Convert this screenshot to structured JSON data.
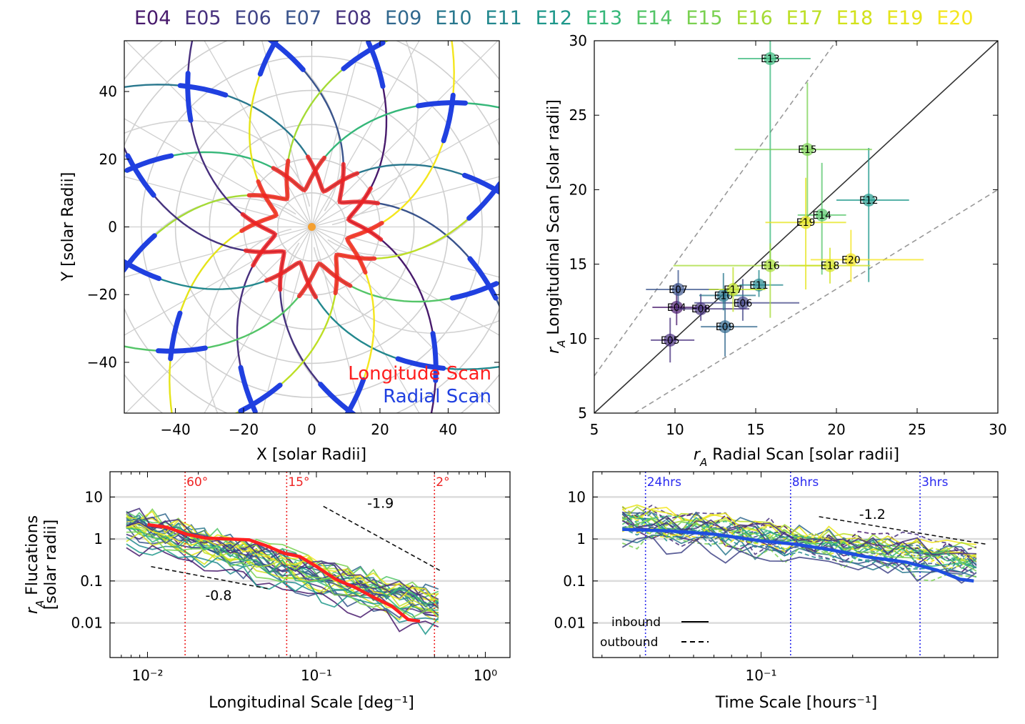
{
  "encounter_labels": [
    {
      "name": "E04",
      "color": "#481a6c"
    },
    {
      "name": "E05",
      "color": "#472f7d"
    },
    {
      "name": "E06",
      "color": "#414487"
    },
    {
      "name": "E07",
      "color": "#3a548c"
    },
    {
      "name": "E08",
      "color": "#46337e"
    },
    {
      "name": "E09",
      "color": "#31688e"
    },
    {
      "name": "E10",
      "color": "#2a788e"
    },
    {
      "name": "E11",
      "color": "#23888e"
    },
    {
      "name": "E12",
      "color": "#1f988b"
    },
    {
      "name": "E13",
      "color": "#35b779"
    },
    {
      "name": "E14",
      "color": "#54c568"
    },
    {
      "name": "E15",
      "color": "#7ad151"
    },
    {
      "name": "E16",
      "color": "#a5db36"
    },
    {
      "name": "E17",
      "color": "#bddf26"
    },
    {
      "name": "E18",
      "color": "#d2e21b"
    },
    {
      "name": "E19",
      "color": "#e5e419"
    },
    {
      "name": "E20",
      "color": "#f4e61e"
    }
  ],
  "chart_data": [
    {
      "id": "orbit-map",
      "type": "scatter",
      "xlabel": "X [solar Radii]",
      "ylabel": "Y [solar Radii]",
      "xlim": [
        -55,
        55
      ],
      "ylim": [
        -55,
        55
      ],
      "xticks": [
        -40,
        -20,
        0,
        20,
        40
      ],
      "yticks": [
        -40,
        -20,
        0,
        20,
        40
      ],
      "xtick_labels": [
        "−40",
        "−20",
        "0",
        "20",
        "40"
      ],
      "ytick_labels": [
        "−40",
        "−20",
        "0",
        "20",
        "40"
      ],
      "legend": [
        {
          "label": "Longitude Scan",
          "color": "#ff2020"
        },
        {
          "label": "Radial Scan",
          "color": "#2040e0"
        }
      ],
      "sun_color": "#f5a030"
    },
    {
      "id": "ra-comparison",
      "type": "scatter",
      "xlabel": "r_A Radial Scan [solar radii]",
      "ylabel": "r_A Longitudinal Scan [solar radii]",
      "xlim": [
        5,
        30
      ],
      "ylim": [
        5,
        30
      ],
      "xticks": [
        5,
        10,
        15,
        20,
        25,
        30
      ],
      "yticks": [
        5,
        10,
        15,
        20,
        25,
        30
      ],
      "points": [
        {
          "label": "E04",
          "x": 10.1,
          "y": 12.1,
          "xerr": [
            1.5,
            2.0
          ],
          "yerr": [
            1.2,
            1.6
          ],
          "color": "#481a6c"
        },
        {
          "label": "E05",
          "x": 9.7,
          "y": 9.9,
          "xerr": [
            1.2,
            1.5
          ],
          "yerr": [
            1.5,
            1.5
          ],
          "color": "#472f7d"
        },
        {
          "label": "E06",
          "x": 14.2,
          "y": 12.4,
          "xerr": [
            3.0,
            3.5
          ],
          "yerr": [
            1.2,
            1.6
          ],
          "color": "#414487"
        },
        {
          "label": "E07",
          "x": 10.2,
          "y": 13.3,
          "xerr": [
            2.0,
            2.5
          ],
          "yerr": [
            1.0,
            1.3
          ],
          "color": "#3a548c"
        },
        {
          "label": "E08",
          "x": 11.6,
          "y": 12.0,
          "xerr": [
            1.5,
            3.0
          ],
          "yerr": [
            0.8,
            1.0
          ],
          "color": "#46337e"
        },
        {
          "label": "E09",
          "x": 13.1,
          "y": 10.8,
          "xerr": [
            1.5,
            2.0
          ],
          "yerr": [
            2.0,
            2.5
          ],
          "color": "#31688e"
        },
        {
          "label": "E10",
          "x": 13.0,
          "y": 12.9,
          "xerr": [
            1.5,
            2.0
          ],
          "yerr": [
            1.0,
            1.5
          ],
          "color": "#2a788e"
        },
        {
          "label": "E11",
          "x": 15.2,
          "y": 13.6,
          "xerr": [
            1.2,
            1.5
          ],
          "yerr": [
            0.8,
            1.0
          ],
          "color": "#23888e"
        },
        {
          "label": "E12",
          "x": 22.0,
          "y": 19.3,
          "xerr": [
            2.0,
            2.5
          ],
          "yerr": [
            5.5,
            3.5
          ],
          "color": "#1f988b"
        },
        {
          "label": "E13",
          "x": 15.9,
          "y": 28.8,
          "xerr": [
            2.0,
            2.5
          ],
          "yerr": [
            14.0,
            1.5
          ],
          "color": "#35b779"
        },
        {
          "label": "E14",
          "x": 19.1,
          "y": 18.3,
          "xerr": [
            1.5,
            1.5
          ],
          "yerr": [
            4.0,
            3.5
          ],
          "color": "#54c568"
        },
        {
          "label": "E15",
          "x": 18.2,
          "y": 22.7,
          "xerr": [
            4.5,
            4.0
          ],
          "yerr": [
            5.0,
            4.5
          ],
          "color": "#7ad151"
        },
        {
          "label": "E16",
          "x": 15.9,
          "y": 14.9,
          "xerr": [
            6.0,
            3.5
          ],
          "yerr": [
            3.5,
            1.5
          ],
          "color": "#a5db36"
        },
        {
          "label": "E17",
          "x": 13.6,
          "y": 13.3,
          "xerr": [
            1.5,
            2.0
          ],
          "yerr": [
            1.5,
            1.5
          ],
          "color": "#bddf26"
        },
        {
          "label": "E18",
          "x": 19.6,
          "y": 14.9,
          "xerr": [
            2.5,
            2.5
          ],
          "yerr": [
            1.2,
            1.2
          ],
          "color": "#d2e21b"
        },
        {
          "label": "E19",
          "x": 18.1,
          "y": 17.8,
          "xerr": [
            2.5,
            2.5
          ],
          "yerr": [
            4.5,
            3.0
          ],
          "color": "#e5e419"
        },
        {
          "label": "E20",
          "x": 20.9,
          "y": 15.3,
          "xerr": [
            2.5,
            4.5
          ],
          "yerr": [
            1.5,
            2.0
          ],
          "color": "#f4e61e"
        }
      ],
      "reference_lines": [
        "y = x",
        "y = 1.5x",
        "y = x / 1.5"
      ]
    },
    {
      "id": "longitudinal-spectrum",
      "type": "line",
      "xscale": "log",
      "yscale": "log",
      "xlabel": "Longitudinal Scale [deg⁻¹]",
      "ylabel_line1": "r_A Flucations",
      "ylabel_line2": "[solar radii]",
      "xlim": [
        0.006,
        1.4
      ],
      "ylim": [
        0.0015,
        40
      ],
      "xtick_values": [
        0.01,
        0.1,
        1
      ],
      "xtick_labels": [
        "10⁻²",
        "10⁻¹",
        "10⁰"
      ],
      "ytick_values": [
        10,
        1,
        0.1,
        0.01
      ],
      "ytick_labels": [
        "10",
        "1",
        "0.1",
        "0.01"
      ],
      "vlines": [
        {
          "x": 0.0167,
          "label": "60°"
        },
        {
          "x": 0.0667,
          "label": "15°"
        },
        {
          "x": 0.5,
          "label": "2°"
        }
      ],
      "slopes": [
        {
          "label": "-1.9",
          "slope": -1.9
        },
        {
          "label": "-0.8",
          "slope": -0.8
        }
      ],
      "mean_curve": {
        "color": "#ff2020",
        "x": [
          0.01,
          0.013,
          0.017,
          0.022,
          0.03,
          0.04,
          0.05,
          0.065,
          0.08,
          0.1,
          0.13,
          0.17,
          0.22,
          0.28,
          0.35,
          0.41
        ],
        "y": [
          2.2,
          1.9,
          1.3,
          1.05,
          1.0,
          0.95,
          0.7,
          0.45,
          0.38,
          0.22,
          0.11,
          0.07,
          0.04,
          0.025,
          0.012,
          0.011
        ]
      }
    },
    {
      "id": "time-spectrum",
      "type": "line",
      "xscale": "log",
      "yscale": "log",
      "xlabel": "Time Scale [hours⁻¹]",
      "xlim": [
        0.028,
        0.6
      ],
      "ylim": [
        0.0015,
        40
      ],
      "xtick_values": [
        0.1
      ],
      "xtick_labels": [
        "10⁻¹"
      ],
      "ytick_values": [
        10,
        1,
        0.1,
        0.01
      ],
      "ytick_labels": [
        "10",
        "1",
        "0.1",
        "0.01"
      ],
      "vlines": [
        {
          "x": 0.0417,
          "label": "24hrs"
        },
        {
          "x": 0.125,
          "label": "8hrs"
        },
        {
          "x": 0.333,
          "label": "3hrs"
        }
      ],
      "slopes": [
        {
          "label": "-1.2",
          "slope": -1.2
        }
      ],
      "legend": [
        {
          "label": "inbound",
          "style": "solid"
        },
        {
          "label": "outbound",
          "style": "dashed"
        }
      ],
      "mean_curve": {
        "color": "#1f4fe0",
        "x": [
          0.035,
          0.05,
          0.07,
          0.1,
          0.13,
          0.17,
          0.22,
          0.3,
          0.38,
          0.45,
          0.5
        ],
        "y": [
          1.7,
          1.55,
          1.3,
          0.9,
          0.75,
          0.55,
          0.38,
          0.28,
          0.18,
          0.11,
          0.1
        ]
      }
    }
  ]
}
